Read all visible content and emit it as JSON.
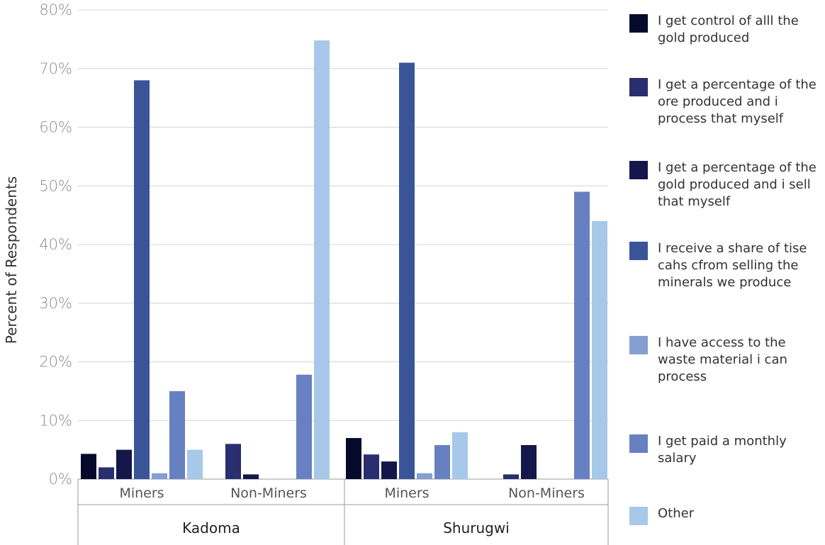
{
  "chart_data": {
    "type": "bar",
    "xlabel": "",
    "ylabel": "Percent of Respondents",
    "ylim": [
      0,
      80
    ],
    "y_ticks": [
      "0%",
      "10%",
      "20%",
      "30%",
      "40%",
      "50%",
      "60%",
      "70%",
      "80%"
    ],
    "grid": "horizontal",
    "legend_position": "right",
    "groups": [
      {
        "name": "Kadoma",
        "categories": [
          "Miners",
          "Non-Miners"
        ]
      },
      {
        "name": "Shurugwi",
        "categories": [
          "Miners",
          "Non-Miners"
        ]
      }
    ],
    "series": [
      {
        "name": "I get control of alll the gold produced",
        "color": "#050a2b",
        "values": [
          4.3,
          0,
          7,
          0
        ]
      },
      {
        "name": "I get a percentage of the ore produced and i process that myself",
        "color": "#2a2d6e",
        "values": [
          2,
          6,
          4.2,
          0.8
        ]
      },
      {
        "name": "I get a percentage of the gold produced and i sell that myself",
        "color": "#15164a",
        "values": [
          5,
          0.8,
          3,
          5.8
        ]
      },
      {
        "name": "I receive a share of tise cahs cfrom selling the minerals we produce",
        "color": "#3a5597",
        "values": [
          68,
          0,
          71,
          0
        ]
      },
      {
        "name": "I have access to the waste material i can process",
        "color": "#849fd0",
        "values": [
          1,
          0,
          1,
          0
        ]
      },
      {
        "name": "I get paid a monthly salary",
        "color": "#6680c2",
        "values": [
          15,
          17.8,
          5.8,
          49
        ]
      },
      {
        "name": "Other",
        "color": "#a7c8e8",
        "values": [
          5,
          74.8,
          8,
          44
        ]
      }
    ]
  }
}
